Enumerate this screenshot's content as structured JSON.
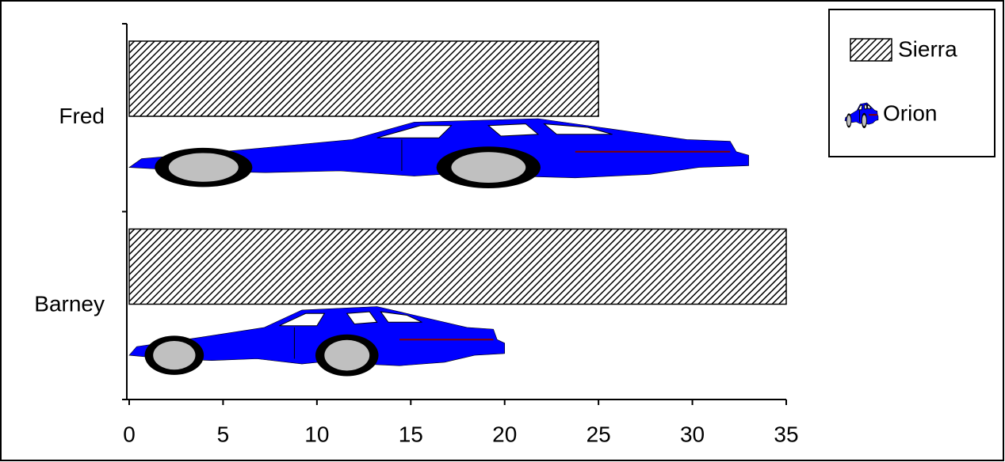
{
  "chart_data": {
    "type": "bar",
    "orientation": "horizontal",
    "categories": [
      "Fred",
      "Barney"
    ],
    "series": [
      {
        "name": "Sierra",
        "color": "#000000",
        "values": [
          25,
          35
        ]
      },
      {
        "name": "Orion",
        "color": "#0000ff",
        "values": [
          33,
          20
        ]
      }
    ],
    "xlim": [
      0,
      35
    ],
    "xticks": [
      0,
      5,
      10,
      15,
      20,
      25,
      30,
      35
    ],
    "legend": "upper right"
  }
}
